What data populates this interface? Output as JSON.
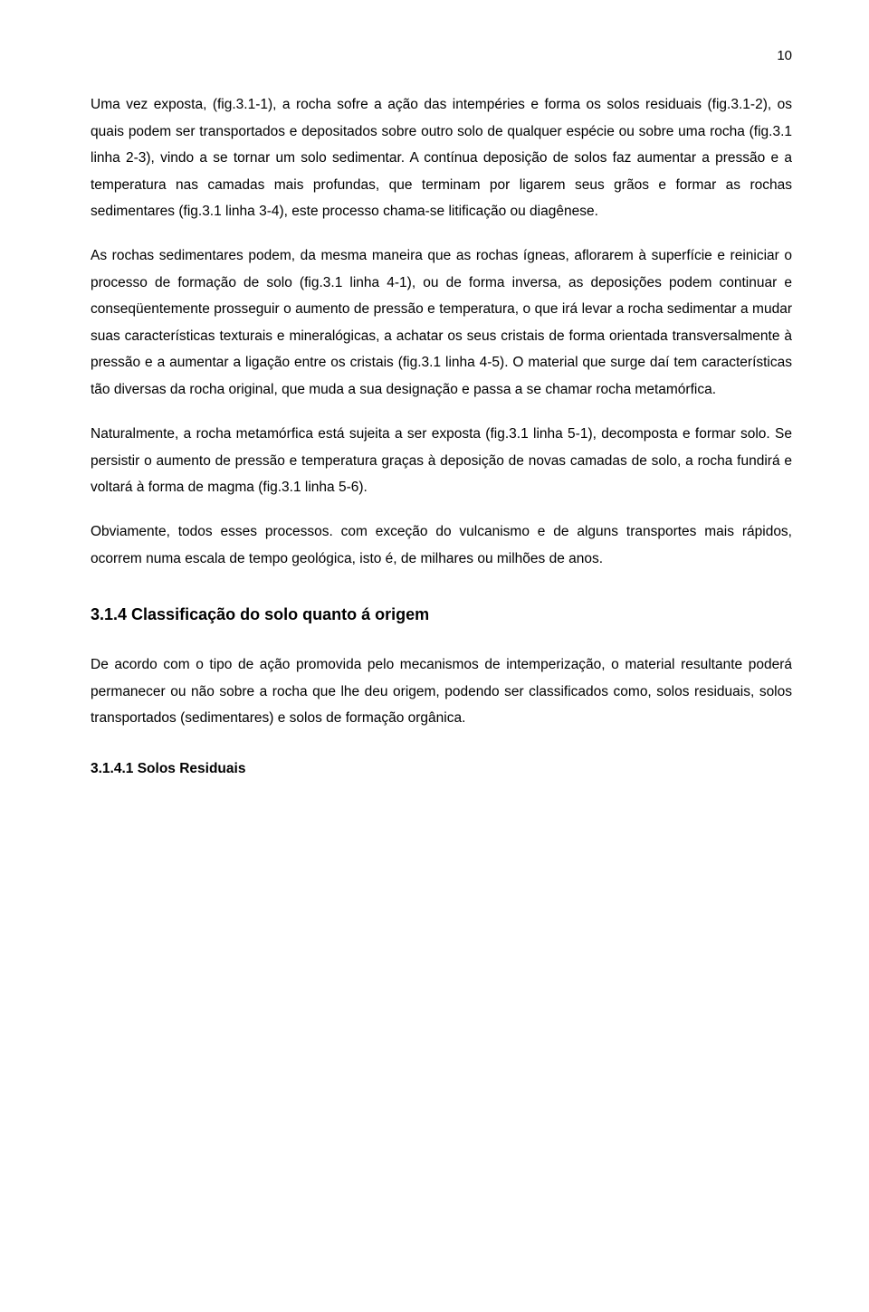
{
  "page_number": "10",
  "paragraphs": {
    "p1": "Uma vez exposta, (fig.3.1-1), a rocha sofre a ação das intempéries e forma os solos residuais (fig.3.1-2), os quais podem ser transportados e depositados sobre outro solo de qualquer espécie ou sobre uma rocha (fig.3.1 linha 2-3), vindo a se tornar um solo sedimentar. A contínua deposição de solos faz aumentar a pressão e a temperatura nas camadas mais profundas, que terminam por ligarem seus grãos e formar as rochas sedimentares (fig.3.1 linha 3-4), este processo chama-se litificação ou diagênese.",
    "p2": "As rochas sedimentares podem, da mesma maneira que as rochas ígneas, aflorarem à superfície e reiniciar o processo de formação de solo (fig.3.1 linha 4-1), ou de forma inversa, as deposições podem continuar e conseqüentemente prosseguir o aumento de pressão e temperatura, o que irá levar a rocha sedimentar a mudar suas características texturais e mineralógicas, a achatar os seus cristais de forma orientada transversalmente à pressão e a aumentar a ligação entre os cristais (fig.3.1 linha 4-5). O material que surge daí tem características tão diversas da rocha original, que muda a sua designação e passa a se chamar rocha metamórfica.",
    "p3": "Naturalmente, a rocha metamórfica está sujeita a ser exposta (fig.3.1 linha 5-1), decomposta e formar solo. Se persistir o aumento de pressão e temperatura graças à deposição de novas camadas de solo, a rocha fundirá e voltará à forma de magma (fig.3.1 linha 5-6).",
    "p4": "Obviamente, todos esses processos. com exceção do vulcanismo e de alguns transportes mais rápidos, ocorrem numa escala de tempo geológica, isto é, de milhares ou milhões de anos.",
    "p5": "De acordo com o tipo de ação promovida pelo mecanismos de intemperização, o material resultante poderá permanecer ou não sobre a rocha que lhe deu origem, podendo ser classificados como, solos residuais, solos transportados (sedimentares) e  solos de formação orgânica."
  },
  "headings": {
    "section": "3.1.4  Classificação do solo quanto á origem",
    "subsection": "3.1.4.1  Solos Residuais"
  },
  "styles": {
    "background": "#ffffff",
    "text_color": "#000000",
    "body_fontsize": 15.5,
    "heading_fontsize": 18,
    "line_height": 1.9,
    "font_family": "Arial"
  }
}
